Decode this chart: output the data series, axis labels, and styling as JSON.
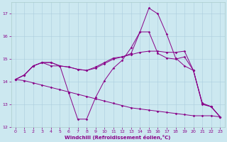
{
  "xlabel": "Windchill (Refroidissement éolien,°C)",
  "bg_color": "#cce8f0",
  "line_color": "#880088",
  "xlim": [
    -0.5,
    23.5
  ],
  "ylim": [
    12,
    17.5
  ],
  "yticks": [
    12,
    13,
    14,
    15,
    16,
    17
  ],
  "xticks": [
    0,
    1,
    2,
    3,
    4,
    5,
    6,
    7,
    8,
    9,
    10,
    11,
    12,
    13,
    14,
    15,
    16,
    17,
    18,
    19,
    20,
    21,
    22,
    23
  ],
  "series": [
    [
      14.1,
      14.3,
      14.7,
      14.85,
      14.85,
      14.7,
      13.5,
      12.35,
      12.35,
      13.3,
      14.05,
      14.6,
      14.95,
      15.5,
      16.2,
      17.25,
      17.0,
      16.1,
      15.05,
      14.7,
      14.5,
      13.0,
      12.9,
      12.45
    ],
    [
      14.1,
      14.3,
      14.7,
      14.85,
      14.85,
      14.7,
      14.65,
      14.55,
      14.5,
      14.6,
      14.8,
      15.0,
      15.1,
      15.25,
      16.2,
      16.2,
      15.25,
      15.05,
      15.0,
      15.1,
      14.5,
      13.05,
      12.9,
      12.45
    ],
    [
      14.1,
      14.3,
      14.7,
      14.85,
      14.7,
      14.7,
      14.65,
      14.55,
      14.5,
      14.65,
      14.85,
      15.05,
      15.1,
      15.2,
      15.3,
      15.35,
      15.35,
      15.3,
      15.3,
      15.35,
      14.5,
      13.05,
      12.9,
      12.45
    ],
    [
      14.1,
      14.05,
      13.95,
      13.85,
      13.75,
      13.65,
      13.55,
      13.45,
      13.35,
      13.25,
      13.15,
      13.05,
      12.95,
      12.85,
      12.8,
      12.75,
      12.7,
      12.65,
      12.6,
      12.55,
      12.5,
      12.5,
      12.5,
      12.45
    ]
  ]
}
